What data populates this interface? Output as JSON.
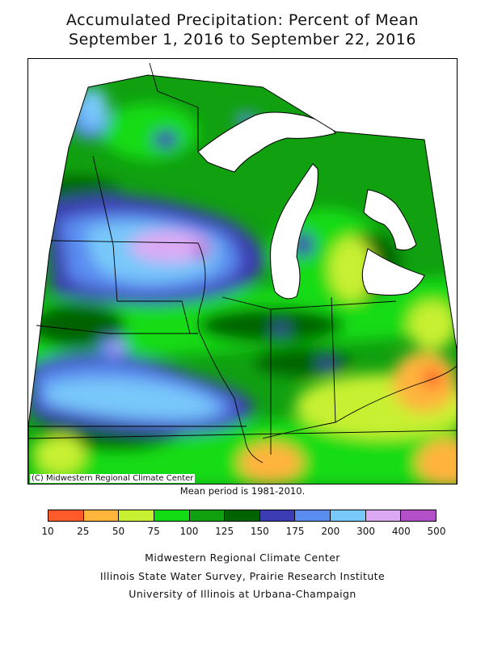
{
  "title_line1": "Accumulated Precipitation: Percent of Mean",
  "title_line2": "September 1, 2016 to September 22, 2016",
  "copyright": "(C) Midwestern Regional Climate Center",
  "mean_period": "Mean period is 1981-2010.",
  "legend": {
    "bins": [
      {
        "from": "10",
        "to": "25",
        "color": "#ff5a2a"
      },
      {
        "from": "25",
        "to": "50",
        "color": "#ffb43c"
      },
      {
        "from": "50",
        "to": "75",
        "color": "#c8f032"
      },
      {
        "from": "75",
        "to": "100",
        "color": "#14dc14"
      },
      {
        "from": "100",
        "to": "125",
        "color": "#10a010"
      },
      {
        "from": "125",
        "to": "150",
        "color": "#006400"
      },
      {
        "from": "150",
        "to": "175",
        "color": "#3c3cb4"
      },
      {
        "from": "175",
        "to": "200",
        "color": "#5a8cf0"
      },
      {
        "from": "200",
        "to": "300",
        "color": "#78c8fa"
      },
      {
        "from": "300",
        "to": "400",
        "color": "#dcaaf5"
      },
      {
        "from": "400",
        "to": "500",
        "color": "#b450c8"
      }
    ],
    "ticks": [
      "10",
      "25",
      "50",
      "75",
      "100",
      "125",
      "150",
      "175",
      "200",
      "300",
      "400",
      "500"
    ]
  },
  "credits": {
    "line1": "Midwestern Regional Climate Center",
    "line2": "Illinois State Water Survey, Prairie Research Institute",
    "line3": "University of Illinois at Urbana-Champaign"
  }
}
